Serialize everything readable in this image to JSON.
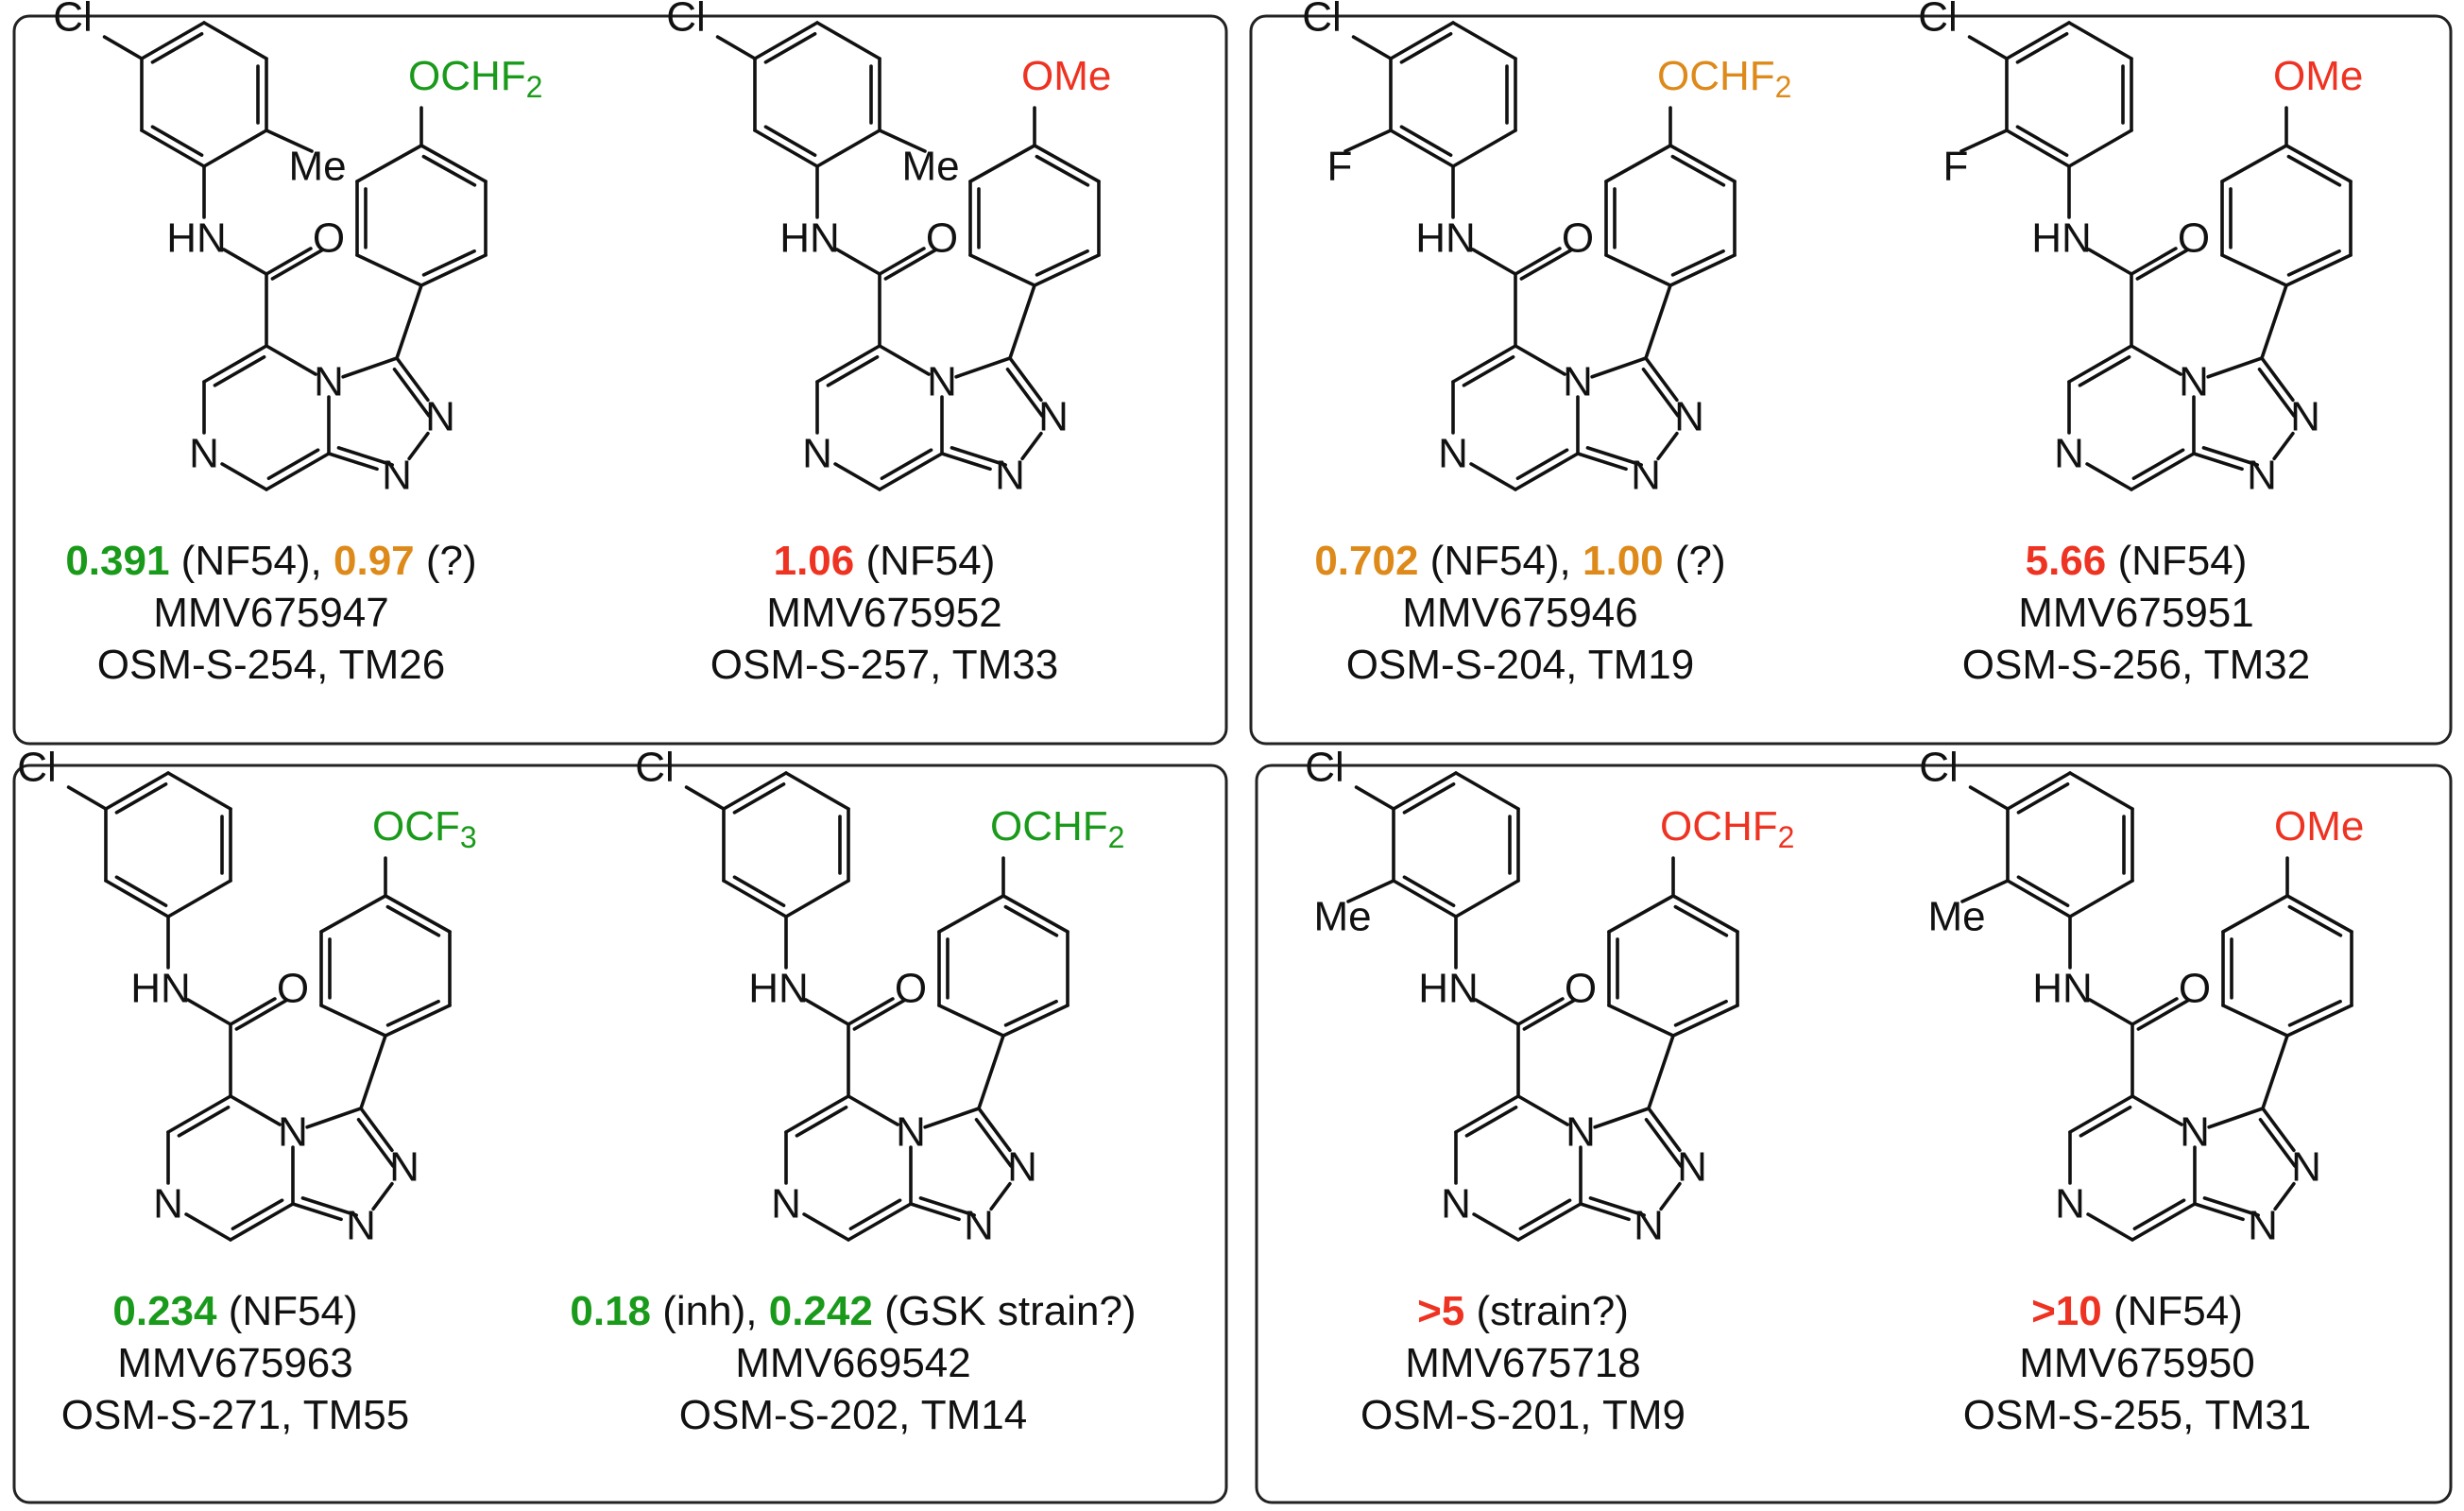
{
  "colors": {
    "green": "#1a9a1a",
    "orange": "#dd8a1a",
    "red": "#ee3322",
    "black": "#111111"
  },
  "panels": [
    {
      "compounds": [
        {
          "aryl": {
            "top": "Cl",
            "ortho": "Me",
            "ortho_side": "right"
          },
          "ether": {
            "text": "OCHF",
            "subscript": "2",
            "color": "green"
          },
          "activity": [
            {
              "value": "0.391",
              "color": "green",
              "note": " (NF54)",
              "sep": ", "
            },
            {
              "value": "0.97",
              "color": "orange",
              "note": " (?)",
              "sep": ""
            }
          ],
          "mmv": "MMV675947",
          "osm": "OSM-S-254, TM26"
        },
        {
          "aryl": {
            "top": "Cl",
            "ortho": "Me",
            "ortho_side": "right"
          },
          "ether": {
            "text": "OMe",
            "subscript": "",
            "color": "red"
          },
          "activity": [
            {
              "value": "1.06",
              "color": "red",
              "note": " (NF54)",
              "sep": ""
            }
          ],
          "mmv": "MMV675952",
          "osm": "OSM-S-257, TM33"
        }
      ]
    },
    {
      "compounds": [
        {
          "aryl": {
            "top": "Cl",
            "ortho": "F",
            "ortho_side": "left"
          },
          "ether": {
            "text": "OCHF",
            "subscript": "2",
            "color": "orange"
          },
          "activity": [
            {
              "value": "0.702",
              "color": "orange",
              "note": " (NF54)",
              "sep": ", "
            },
            {
              "value": "1.00",
              "color": "orange",
              "note": " (?)",
              "sep": ""
            }
          ],
          "mmv": "MMV675946",
          "osm": "OSM-S-204, TM19"
        },
        {
          "aryl": {
            "top": "Cl",
            "ortho": "F",
            "ortho_side": "left"
          },
          "ether": {
            "text": "OMe",
            "subscript": "",
            "color": "red"
          },
          "activity": [
            {
              "value": "5.66",
              "color": "red",
              "note": " (NF54)",
              "sep": ""
            }
          ],
          "mmv": "MMV675951",
          "osm": "OSM-S-256, TM32"
        }
      ]
    },
    {
      "compounds": [
        {
          "aryl": {
            "top": "Cl",
            "ortho": "",
            "ortho_side": "none"
          },
          "ether": {
            "text": "OCF",
            "subscript": "3",
            "color": "green"
          },
          "activity": [
            {
              "value": "0.234",
              "color": "green",
              "note": " (NF54)",
              "sep": ""
            }
          ],
          "mmv": "MMV675963",
          "osm": "OSM-S-271, TM55"
        },
        {
          "aryl": {
            "top": "Cl",
            "ortho": "",
            "ortho_side": "none"
          },
          "ether": {
            "text": "OCHF",
            "subscript": "2",
            "color": "green"
          },
          "activity": [
            {
              "value": "0.18",
              "color": "green",
              "note": " (inh)",
              "sep": ", "
            },
            {
              "value": "0.242",
              "color": "green",
              "note": " (GSK strain?)",
              "sep": ""
            }
          ],
          "mmv": "MMV669542",
          "osm": "OSM-S-202, TM14"
        }
      ]
    },
    {
      "compounds": [
        {
          "aryl": {
            "top": "Cl",
            "ortho": "Me",
            "ortho_side": "left"
          },
          "ether": {
            "text": "OCHF",
            "subscript": "2",
            "color": "red"
          },
          "activity": [
            {
              "value": ">5",
              "color": "red",
              "note": " (strain?)",
              "sep": ""
            }
          ],
          "mmv": "MMV675718",
          "osm": "OSM-S-201, TM9"
        },
        {
          "aryl": {
            "top": "Cl",
            "ortho": "Me",
            "ortho_side": "left"
          },
          "ether": {
            "text": "OMe",
            "subscript": "",
            "color": "red"
          },
          "activity": [
            {
              "value": ">10",
              "color": "red",
              "note": " (NF54)",
              "sep": ""
            }
          ],
          "mmv": "MMV675950",
          "osm": "OSM-S-255, TM31"
        }
      ]
    }
  ],
  "atoms": {
    "nh": "HN",
    "carbonyl_o": "O",
    "pyrazine_n": "N",
    "bridge_n": "N",
    "triazole_n": "N"
  }
}
